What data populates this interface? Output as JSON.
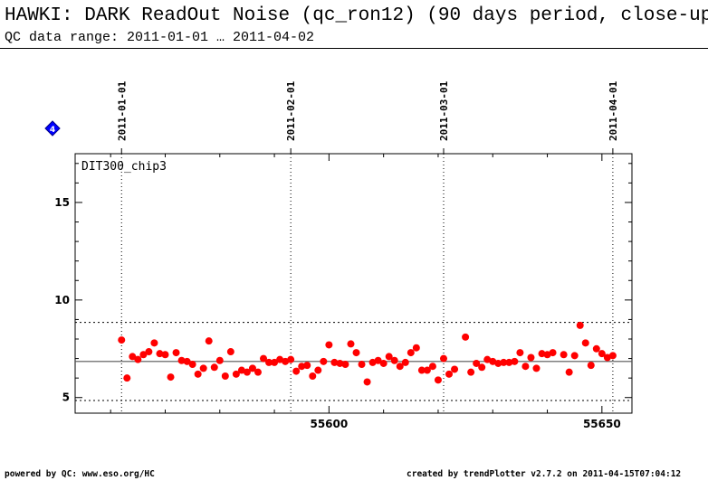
{
  "header": {
    "title": "HAWKI: DARK ReadOut Noise (qc_ron12) (90 days period, close-up",
    "subtitle": "QC data range: 2011-01-01 … 2011-04-02"
  },
  "footer": {
    "left": "powered by QC: www.eso.org/HC",
    "right": "created by trendPlotter v2.7.2 on 2011-04-15T07:04:12"
  },
  "marker": {
    "label": "4",
    "color": "#0000ff"
  },
  "colors": {
    "points": "#ff0000",
    "mean_line": "#555555"
  },
  "chart_data": {
    "type": "scatter",
    "panel_label": "DIT300_chip3",
    "xlim": [
      55553.5,
      55655.5
    ],
    "ylim": [
      4.2,
      17.5
    ],
    "x_ticks": [
      55600,
      55650
    ],
    "y_ticks": [
      5,
      10,
      15
    ],
    "date_markers": [
      {
        "label": "2011-01-01",
        "x": 55562
      },
      {
        "label": "2011-02-01",
        "x": 55593
      },
      {
        "label": "2011-03-01",
        "x": 55621
      },
      {
        "label": "2011-04-01",
        "x": 55652
      }
    ],
    "mean": 6.85,
    "limits": [
      4.85,
      8.85
    ],
    "x": [
      55562,
      55563,
      55564,
      55565,
      55566,
      55567,
      55568,
      55569,
      55570,
      55571,
      55572,
      55573,
      55574,
      55575,
      55576,
      55577,
      55578,
      55579,
      55580,
      55581,
      55582,
      55583,
      55584,
      55585,
      55586,
      55587,
      55588,
      55589,
      55590,
      55591,
      55592,
      55593,
      55594,
      55595,
      55596,
      55597,
      55598,
      55599,
      55600,
      55601,
      55602,
      55603,
      55604,
      55605,
      55606,
      55607,
      55608,
      55609,
      55610,
      55611,
      55612,
      55613,
      55614,
      55615,
      55616,
      55617,
      55618,
      55619,
      55620,
      55621,
      55622,
      55623,
      55625,
      55626,
      55627,
      55628,
      55629,
      55630,
      55631,
      55632,
      55633,
      55634,
      55635,
      55636,
      55637,
      55638,
      55639,
      55640,
      55641,
      55643,
      55644,
      55645,
      55646,
      55647,
      55648,
      55649,
      55650,
      55651,
      55652
    ],
    "y": [
      7.95,
      6.0,
      7.1,
      6.95,
      7.2,
      7.35,
      7.8,
      7.25,
      7.2,
      6.05,
      7.3,
      6.9,
      6.85,
      6.7,
      6.2,
      6.5,
      7.9,
      6.55,
      6.9,
      6.1,
      7.35,
      6.2,
      6.4,
      6.3,
      6.5,
      6.3,
      7.0,
      6.8,
      6.8,
      6.95,
      6.85,
      6.95,
      6.35,
      6.6,
      6.65,
      6.1,
      6.4,
      6.85,
      7.7,
      6.8,
      6.75,
      6.7,
      7.75,
      7.3,
      6.7,
      5.8,
      6.8,
      6.9,
      6.75,
      7.1,
      6.9,
      6.6,
      6.8,
      7.3,
      7.55,
      6.4,
      6.4,
      6.6,
      5.9,
      7.0,
      6.2,
      6.45,
      8.1,
      6.3,
      6.75,
      6.55,
      6.95,
      6.85,
      6.75,
      6.8,
      6.8,
      6.85,
      7.3,
      6.6,
      7.05,
      6.5,
      7.25,
      7.2,
      7.3,
      7.2,
      6.3,
      7.15,
      8.7,
      7.8,
      6.65,
      7.5,
      7.25,
      7.05,
      7.15
    ]
  }
}
